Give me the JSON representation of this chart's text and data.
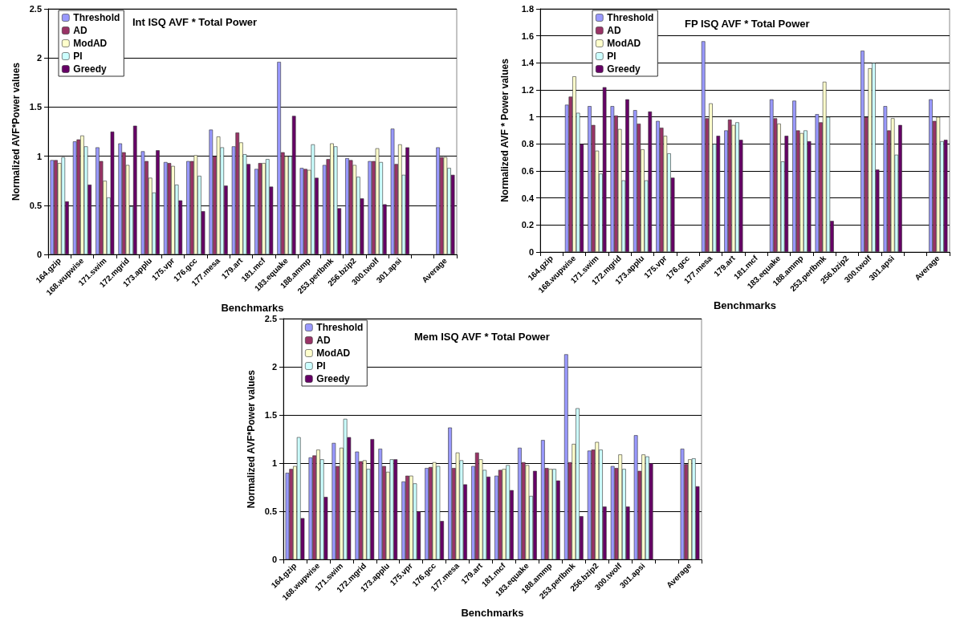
{
  "chart_data": [
    {
      "type": "bar",
      "title": "Int ISQ AVF * Total Power",
      "xlabel": "Benchmarks",
      "ylabel": "Normalized AVF*Power values",
      "categories": [
        "164.gzip",
        "168.wupwise",
        "171.swim",
        "172.mgrid",
        "173.applu",
        "175.vpr",
        "176.gcc",
        "177.mesa",
        "179.art",
        "181.mcf",
        "183.equake",
        "188.ammp",
        "253.perlbmk",
        "256.bzip2",
        "300.twolf",
        "301.apsi",
        null,
        "Average"
      ],
      "series": [
        {
          "name": "Threshold",
          "color": "#9999ff",
          "values": [
            0.96,
            1.15,
            1.09,
            1.13,
            1.05,
            0.94,
            0.95,
            1.27,
            1.1,
            0.87,
            1.96,
            0.88,
            0.91,
            0.98,
            0.95,
            1.28,
            null,
            1.09
          ]
        },
        {
          "name": "AD",
          "color": "#993366",
          "values": [
            0.96,
            1.17,
            0.95,
            1.04,
            0.95,
            0.93,
            0.95,
            1.0,
            1.24,
            0.93,
            1.04,
            0.87,
            0.97,
            0.96,
            0.95,
            0.92,
            null,
            0.99
          ]
        },
        {
          "name": "ModAD",
          "color": "#ffffcc",
          "values": [
            0.93,
            1.21,
            0.75,
            0.91,
            0.78,
            0.9,
            1.01,
            1.2,
            1.14,
            0.93,
            1.0,
            0.86,
            1.13,
            0.91,
            1.08,
            1.12,
            null,
            0.99
          ]
        },
        {
          "name": "PI",
          "color": "#ccffff",
          "values": [
            0.99,
            1.1,
            0.58,
            0.49,
            0.63,
            0.71,
            0.8,
            1.09,
            1.02,
            0.97,
            1.0,
            1.12,
            1.1,
            0.79,
            0.94,
            0.81,
            null,
            0.88
          ]
        },
        {
          "name": "Greedy",
          "color": "#660066",
          "values": [
            0.54,
            0.71,
            1.25,
            1.31,
            1.06,
            0.55,
            0.44,
            0.7,
            0.92,
            0.69,
            1.41,
            0.78,
            0.47,
            0.57,
            0.51,
            1.09,
            null,
            0.81
          ]
        }
      ],
      "ylim": [
        0,
        2.5
      ],
      "yticks": [
        0,
        0.5,
        1,
        1.5,
        2,
        2.5
      ],
      "grid": "y",
      "legend": "top left"
    },
    {
      "type": "bar",
      "title": "FP ISQ AVF * Total Power",
      "xlabel": "Benchmarks",
      "ylabel": "Normalized AVF * Power values",
      "categories": [
        "164.gzip",
        "168.wupwise",
        "171.swim",
        "172.mgrid",
        "173.applu",
        "175.vpr",
        "176.gcc",
        "177.mesa",
        "179.art",
        "181.mcf",
        "183.equake",
        "188.ammp",
        "253.perlbmk",
        "256.bzip2",
        "300.twolf",
        "301.apsi",
        null,
        "Average"
      ],
      "series": [
        {
          "name": "Threshold",
          "color": "#9999ff",
          "values": [
            null,
            1.09,
            1.08,
            1.08,
            1.05,
            0.97,
            null,
            1.56,
            0.9,
            null,
            1.13,
            1.12,
            1.02,
            null,
            1.49,
            1.08,
            null,
            1.13
          ]
        },
        {
          "name": "AD",
          "color": "#993366",
          "values": [
            null,
            1.15,
            0.94,
            1.01,
            0.95,
            0.92,
            null,
            0.99,
            0.98,
            null,
            0.99,
            0.9,
            0.96,
            null,
            1.0,
            0.9,
            null,
            0.97
          ]
        },
        {
          "name": "ModAD",
          "color": "#ffffcc",
          "values": [
            null,
            1.3,
            0.75,
            0.91,
            0.76,
            0.86,
            null,
            1.1,
            0.94,
            null,
            0.95,
            0.88,
            1.26,
            null,
            1.36,
            0.99,
            null,
            1.0
          ]
        },
        {
          "name": "PI",
          "color": "#ccffff",
          "values": [
            null,
            1.03,
            0.58,
            0.53,
            0.53,
            0.73,
            null,
            0.8,
            0.96,
            null,
            0.67,
            0.9,
            1.0,
            null,
            1.4,
            0.72,
            null,
            0.82
          ]
        },
        {
          "name": "Greedy",
          "color": "#660066",
          "values": [
            null,
            0.8,
            1.22,
            1.13,
            1.04,
            0.55,
            null,
            0.86,
            0.83,
            null,
            0.86,
            0.82,
            0.23,
            null,
            0.61,
            0.94,
            null,
            0.83
          ]
        }
      ],
      "ylim": [
        0,
        1.8
      ],
      "yticks": [
        0,
        0.2,
        0.4,
        0.6,
        0.8,
        1,
        1.2,
        1.4,
        1.6,
        1.8
      ],
      "grid": "y",
      "legend": "top left"
    },
    {
      "type": "bar",
      "title": "Mem ISQ AVF * Total Power",
      "xlabel": "Benchmarks",
      "ylabel": "Normalized AVF*Power values",
      "categories": [
        "164.gzip",
        "168.wupwise",
        "171.swim",
        "172.mgrid",
        "173.applu",
        "175.vpr",
        "176.gcc",
        "177.mesa",
        "179.art",
        "181.mcf",
        "183.equake",
        "188.ammp",
        "253.perlbmk",
        "256.bzip2",
        "300.twolf",
        "301.apsi",
        null,
        "Average"
      ],
      "series": [
        {
          "name": "Threshold",
          "color": "#9999ff",
          "values": [
            0.9,
            1.06,
            1.21,
            1.12,
            1.15,
            0.81,
            0.95,
            1.37,
            0.97,
            0.87,
            1.16,
            1.24,
            2.13,
            1.13,
            0.97,
            1.29,
            null,
            1.15
          ]
        },
        {
          "name": "AD",
          "color": "#993366",
          "values": [
            0.94,
            1.08,
            0.97,
            1.02,
            0.97,
            0.87,
            0.96,
            0.95,
            1.11,
            0.93,
            1.01,
            0.95,
            1.01,
            1.14,
            0.95,
            0.92,
            null,
            0.99
          ]
        },
        {
          "name": "ModAD",
          "color": "#ffffcc",
          "values": [
            0.97,
            1.14,
            1.16,
            1.03,
            0.91,
            0.87,
            1.01,
            1.11,
            1.04,
            0.94,
            0.98,
            0.94,
            1.2,
            1.22,
            1.09,
            1.09,
            null,
            1.04
          ]
        },
        {
          "name": "PI",
          "color": "#ccffff",
          "values": [
            1.27,
            1.04,
            1.46,
            0.94,
            1.04,
            0.79,
            0.97,
            1.03,
            0.93,
            0.98,
            0.66,
            0.94,
            1.57,
            1.14,
            0.94,
            1.07,
            null,
            1.05
          ]
        },
        {
          "name": "Greedy",
          "color": "#660066",
          "values": [
            0.43,
            0.65,
            1.27,
            1.25,
            1.04,
            0.5,
            0.4,
            0.78,
            0.86,
            0.72,
            0.92,
            0.82,
            0.45,
            0.55,
            0.55,
            1.0,
            null,
            0.76
          ]
        }
      ],
      "ylim": [
        0,
        2.5
      ],
      "yticks": [
        0,
        0.5,
        1,
        1.5,
        2,
        2.5
      ],
      "grid": "y",
      "legend": "top left"
    }
  ]
}
